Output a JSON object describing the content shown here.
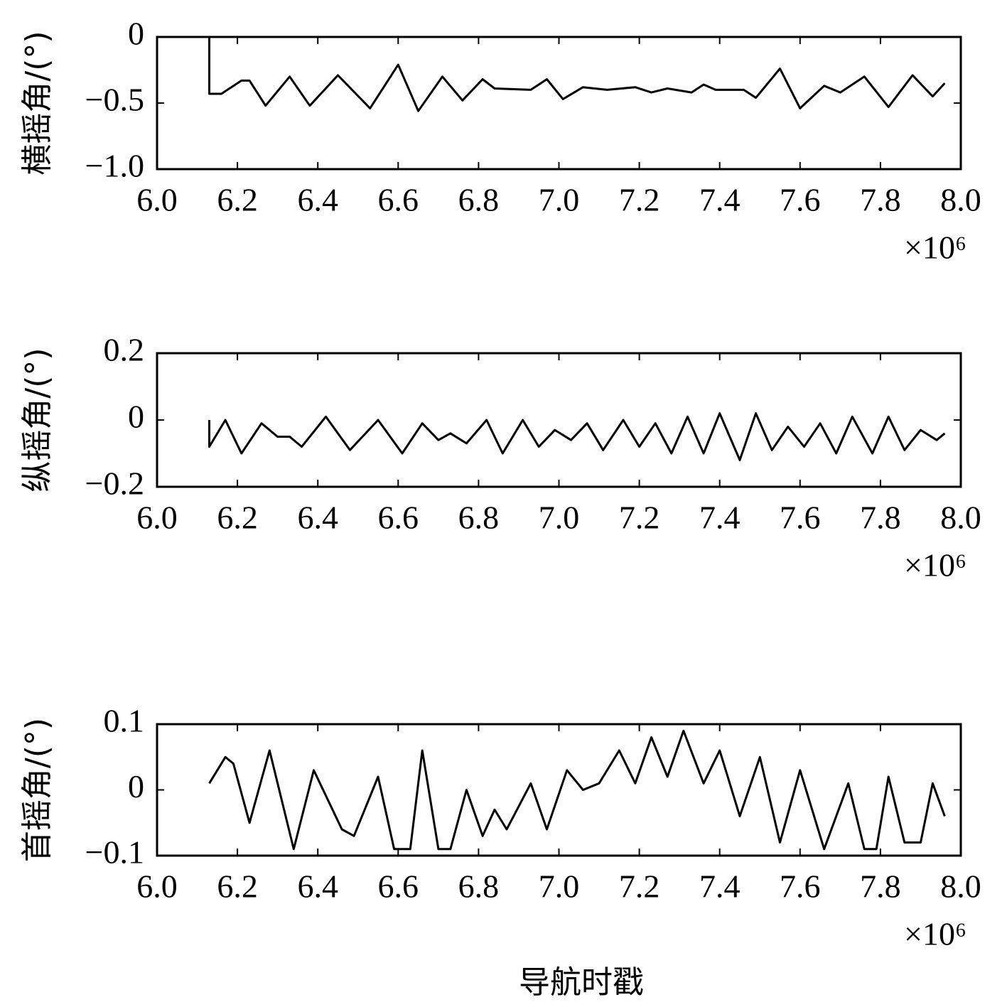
{
  "chart_data": [
    {
      "type": "line",
      "ylabel": "横摇角/(°)",
      "x_multiplier": "×10⁶",
      "color": "#000000",
      "xlim": [
        6,
        8
      ],
      "xticks": [
        {
          "value": 6,
          "label": "6.0"
        },
        6.2,
        6.4,
        6.6,
        6.8,
        {
          "value": 7,
          "label": "7.0"
        },
        7.2,
        7.4,
        7.6,
        7.8,
        {
          "value": 8,
          "label": "8.0"
        }
      ],
      "ylim": [
        -1,
        0
      ],
      "yticks": [
        0,
        {
          "value": -0.5,
          "label": "−0.5"
        },
        {
          "value": -1,
          "label": "−1.0"
        }
      ],
      "x": [
        6.13,
        6.13,
        6.16,
        6.21,
        6.23,
        6.27,
        6.33,
        6.38,
        6.45,
        6.53,
        6.6,
        6.65,
        6.71,
        6.76,
        6.81,
        6.84,
        6.93,
        6.97,
        7.01,
        7.06,
        7.12,
        7.19,
        7.23,
        7.27,
        7.33,
        7.36,
        7.39,
        7.46,
        7.49,
        7.55,
        7.6,
        7.66,
        7.7,
        7.76,
        7.82,
        7.88,
        7.93,
        7.96
      ],
      "values": [
        0,
        -0.43,
        -0.43,
        -0.33,
        -0.33,
        -0.52,
        -0.3,
        -0.52,
        -0.29,
        -0.54,
        -0.21,
        -0.56,
        -0.3,
        -0.48,
        -0.32,
        -0.39,
        -0.4,
        -0.32,
        -0.47,
        -0.38,
        -0.4,
        -0.38,
        -0.42,
        -0.39,
        -0.42,
        -0.36,
        -0.4,
        -0.4,
        -0.46,
        -0.24,
        -0.54,
        -0.37,
        -0.42,
        -0.3,
        -0.53,
        -0.29,
        -0.45,
        -0.35
      ]
    },
    {
      "type": "line",
      "ylabel": "纵摇角/(°)",
      "x_multiplier": "×10⁶",
      "color": "#000000",
      "xlim": [
        6,
        8
      ],
      "xticks": [
        {
          "value": 6,
          "label": "6.0"
        },
        6.2,
        6.4,
        6.6,
        6.8,
        {
          "value": 7,
          "label": "7.0"
        },
        7.2,
        7.4,
        7.6,
        7.8,
        {
          "value": 8,
          "label": "8.0"
        }
      ],
      "ylim": [
        -0.2,
        0.2
      ],
      "yticks": [
        0.2,
        0,
        {
          "value": -0.2,
          "label": "−0.2"
        }
      ],
      "x": [
        6.13,
        6.13,
        6.17,
        6.21,
        6.26,
        6.3,
        6.33,
        6.36,
        6.42,
        6.48,
        6.55,
        6.61,
        6.66,
        6.7,
        6.73,
        6.77,
        6.82,
        6.86,
        6.91,
        6.95,
        6.99,
        7.03,
        7.07,
        7.11,
        7.16,
        7.2,
        7.24,
        7.28,
        7.32,
        7.36,
        7.4,
        7.45,
        7.49,
        7.53,
        7.57,
        7.61,
        7.65,
        7.69,
        7.73,
        7.78,
        7.82,
        7.86,
        7.9,
        7.94,
        7.96
      ],
      "values": [
        0,
        -0.08,
        0,
        -0.1,
        -0.01,
        -0.05,
        -0.05,
        -0.08,
        0.01,
        -0.09,
        0,
        -0.1,
        -0.01,
        -0.06,
        -0.04,
        -0.07,
        0,
        -0.1,
        0,
        -0.08,
        -0.03,
        -0.06,
        -0.01,
        -0.09,
        0,
        -0.08,
        -0.01,
        -0.1,
        0.01,
        -0.1,
        0.02,
        -0.12,
        0.02,
        -0.09,
        -0.02,
        -0.08,
        -0.01,
        -0.1,
        0.01,
        -0.1,
        0.01,
        -0.09,
        -0.03,
        -0.06,
        -0.04
      ]
    },
    {
      "type": "line",
      "ylabel": "首摇角/(°)",
      "xlabel": "导航时戳",
      "x_multiplier": "×10⁶",
      "color": "#000000",
      "xlim": [
        6,
        8
      ],
      "xticks": [
        {
          "value": 6,
          "label": "6.0"
        },
        6.2,
        6.4,
        6.6,
        6.8,
        {
          "value": 7,
          "label": "7.0"
        },
        7.2,
        7.4,
        7.6,
        7.8,
        {
          "value": 8,
          "label": "8.0"
        }
      ],
      "ylim": [
        -0.1,
        0.1
      ],
      "yticks": [
        0.1,
        0,
        {
          "value": -0.1,
          "label": "−0.1"
        }
      ],
      "x": [
        6.13,
        6.17,
        6.19,
        6.23,
        6.28,
        6.34,
        6.39,
        6.46,
        6.49,
        6.55,
        6.59,
        6.63,
        6.66,
        6.7,
        6.73,
        6.77,
        6.81,
        6.84,
        6.87,
        6.93,
        6.97,
        7.02,
        7.06,
        7.1,
        7.15,
        7.19,
        7.23,
        7.27,
        7.31,
        7.36,
        7.4,
        7.45,
        7.5,
        7.55,
        7.6,
        7.66,
        7.72,
        7.76,
        7.79,
        7.82,
        7.86,
        7.9,
        7.93,
        7.96
      ],
      "values": [
        0.01,
        0.05,
        0.04,
        -0.05,
        0.06,
        -0.09,
        0.03,
        -0.06,
        -0.07,
        0.02,
        -0.09,
        -0.09,
        0.06,
        -0.09,
        -0.09,
        0,
        -0.07,
        -0.03,
        -0.06,
        0.01,
        -0.06,
        0.03,
        0,
        0.01,
        0.06,
        0.01,
        0.08,
        0.02,
        0.09,
        0.01,
        0.06,
        -0.04,
        0.05,
        -0.08,
        0.03,
        -0.09,
        0.01,
        -0.09,
        -0.09,
        0.02,
        -0.08,
        -0.08,
        0.01,
        -0.04
      ]
    }
  ]
}
